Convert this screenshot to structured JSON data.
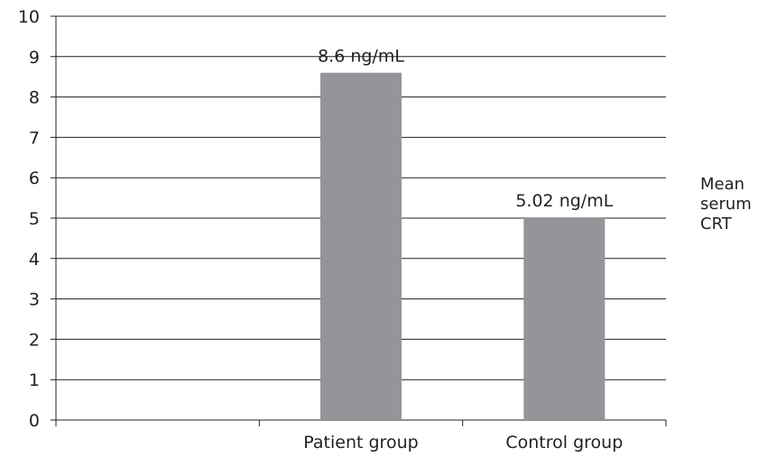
{
  "chart_data": {
    "type": "bar",
    "categories": [
      "",
      "Patient group",
      "Control group"
    ],
    "series": [
      {
        "name": "Mean serum CRT",
        "values": [
          null,
          8.6,
          5.02
        ],
        "color": "#939598"
      }
    ],
    "data_labels": [
      "",
      "8.6 ng/mL",
      "5.02 ng/mL"
    ],
    "ylim": [
      0,
      10
    ],
    "yticks": [
      "0",
      "1",
      "2",
      "3",
      "4",
      "5",
      "6",
      "7",
      "8",
      "9",
      "10"
    ],
    "grid": true,
    "legend_position": "right",
    "legend_lines": [
      "Mean",
      "serum",
      "CRT"
    ],
    "gridline_color": "#231f20"
  }
}
